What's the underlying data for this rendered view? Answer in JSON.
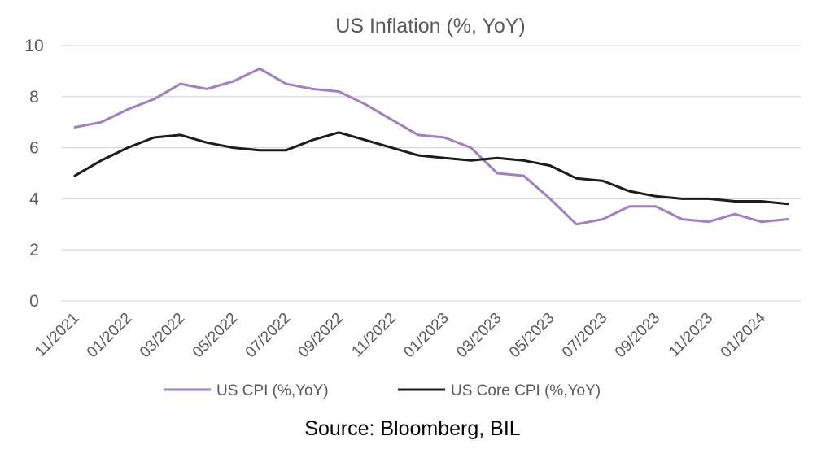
{
  "chart_data": {
    "type": "line",
    "title": "US Inflation (%, YoY)",
    "xlabel": "",
    "ylabel": "",
    "ylim": [
      0,
      10
    ],
    "yticks": [
      0,
      2,
      4,
      6,
      8,
      10
    ],
    "grid": "horizontal",
    "legend_position": "bottom",
    "x": [
      "11/2021",
      "12/2021",
      "01/2022",
      "02/2022",
      "03/2022",
      "04/2022",
      "05/2022",
      "06/2022",
      "07/2022",
      "08/2022",
      "09/2022",
      "10/2022",
      "11/2022",
      "12/2022",
      "01/2023",
      "02/2023",
      "03/2023",
      "04/2023",
      "05/2023",
      "06/2023",
      "07/2023",
      "08/2023",
      "09/2023",
      "10/2023",
      "11/2023",
      "12/2023",
      "01/2024",
      "02/2024"
    ],
    "xtick_labels": [
      "11/2021",
      "01/2022",
      "03/2022",
      "05/2022",
      "07/2022",
      "09/2022",
      "11/2022",
      "01/2023",
      "03/2023",
      "05/2023",
      "07/2023",
      "09/2023",
      "11/2023",
      "01/2024"
    ],
    "series": [
      {
        "name": "US CPI (%,YoY)",
        "color": "#a27fc0",
        "values": [
          6.8,
          7.0,
          7.5,
          7.9,
          8.5,
          8.3,
          8.6,
          9.1,
          8.5,
          8.3,
          8.2,
          7.7,
          7.1,
          6.5,
          6.4,
          6.0,
          5.0,
          4.9,
          4.0,
          3.0,
          3.2,
          3.7,
          3.7,
          3.2,
          3.1,
          3.4,
          3.1,
          3.2
        ]
      },
      {
        "name": "US Core CPI (%,YoY)",
        "color": "#1c1c1c",
        "values": [
          4.9,
          5.5,
          6.0,
          6.4,
          6.5,
          6.2,
          6.0,
          5.9,
          5.9,
          6.3,
          6.6,
          6.3,
          6.0,
          5.7,
          5.6,
          5.5,
          5.6,
          5.5,
          5.3,
          4.8,
          4.7,
          4.3,
          4.1,
          4.0,
          4.0,
          3.9,
          3.9,
          3.8
        ]
      }
    ]
  },
  "source": "Source: Bloomberg, BIL"
}
